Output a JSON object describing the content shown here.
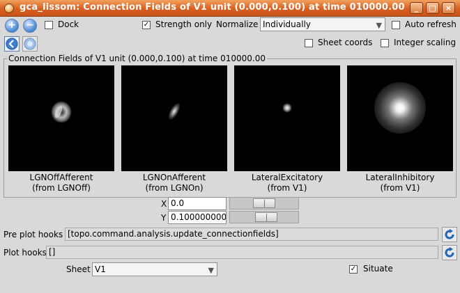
{
  "window": {
    "title": "gca_lissom: Connection Fields of V1 unit (0.000,0.100) at time 010000.00",
    "buttons": {
      "minimize": "_",
      "maximize": "□",
      "close": "×"
    }
  },
  "toolbar": {
    "zoom_in": "+",
    "zoom_out": "−",
    "dock": {
      "label": "Dock",
      "checked": ""
    },
    "strength_only": {
      "label": "Strength only",
      "checked": "✓"
    },
    "normalize": {
      "label": "Normalize",
      "value": "Individually"
    },
    "auto_refresh": {
      "label": "Auto refresh",
      "checked": ""
    },
    "sheet_coords": {
      "label": "Sheet coords",
      "checked": ""
    },
    "integer_scaling": {
      "label": "Integer scaling",
      "checked": ""
    }
  },
  "plot_group": {
    "title": "Connection Fields of V1 unit (0.000,0.100) at time 010000.00",
    "plots": [
      {
        "name": "LGNOffAfferent",
        "source": "(from LGNOff)"
      },
      {
        "name": "LGNOnAfferent",
        "source": "(from LGNOn)"
      },
      {
        "name": "LateralExcitatory",
        "source": "(from V1)"
      },
      {
        "name": "LateralInhibitory",
        "source": "(from V1)"
      }
    ]
  },
  "coords": {
    "x": {
      "label": "X",
      "value": "0.0",
      "slider_fraction": 0.5
    },
    "y": {
      "label": "Y",
      "value": "0.100000000",
      "slider_fraction": 0.55
    }
  },
  "hooks": {
    "pre_plot": {
      "label": "Pre plot hooks",
      "value": "[topo.command.analysis.update_connectionfields]"
    },
    "plot": {
      "label": "Plot hooks",
      "value": "[]"
    }
  },
  "sheet": {
    "label": "Sheet",
    "value": "V1"
  },
  "situate": {
    "label": "Situate",
    "checked": "✓"
  },
  "icons": [
    "app-icon",
    "zoom-in-icon",
    "zoom-out-icon",
    "back-icon",
    "forward-icon",
    "refresh-icon",
    "chevron-down-icon"
  ]
}
